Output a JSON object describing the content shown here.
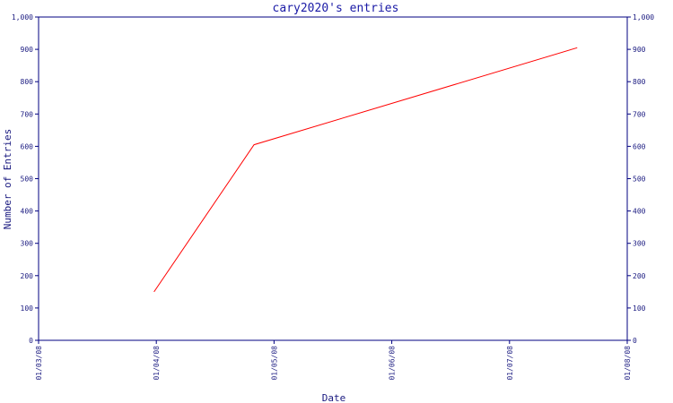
{
  "chart_data": {
    "type": "line",
    "title": "cary2020's entries",
    "xlabel": "Date",
    "ylabel": "Number of Entries",
    "x_ticks": [
      "01/03/08",
      "01/04/08",
      "01/05/08",
      "01/06/08",
      "01/07/08",
      "01/08/08"
    ],
    "y_ticks": [
      "0",
      "100",
      "200",
      "300",
      "400",
      "500",
      "600",
      "700",
      "800",
      "900",
      "1,000"
    ],
    "ylim": [
      0,
      1000
    ],
    "xlim": [
      "2008-03-01",
      "2008-08-01"
    ],
    "series": [
      {
        "color": "#ff0000",
        "points": [
          {
            "x": "2008-03-31",
            "y": 150
          },
          {
            "x": "2008-04-26",
            "y": 605
          },
          {
            "x": "2008-07-19",
            "y": 905
          }
        ]
      }
    ],
    "grid": false,
    "right_axis": true
  },
  "colors": {
    "axis": "#000080",
    "title": "#1a1aa6",
    "line": "#ff0000"
  }
}
